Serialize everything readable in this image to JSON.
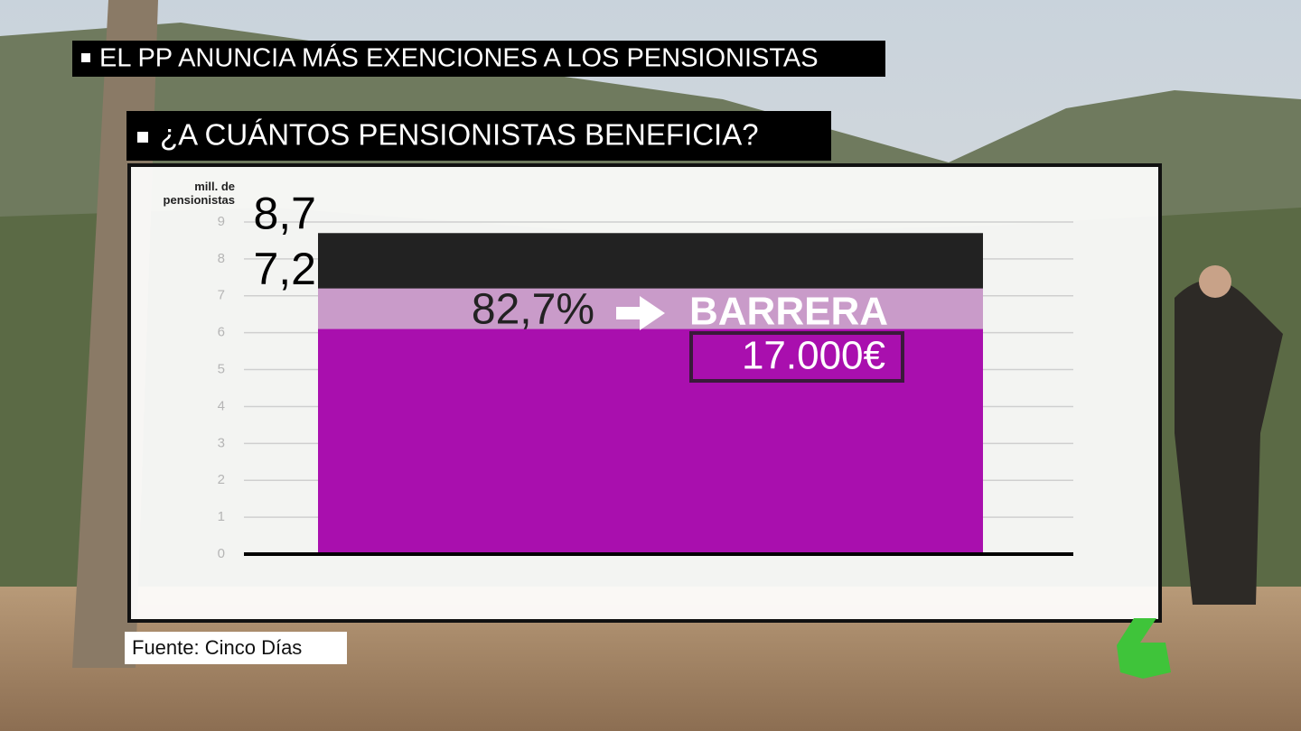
{
  "header": {
    "title": "EL PP ANUNCIA MÁS EXENCIONES A LOS PENSIONISTAS",
    "subtitle": "¿A CUÁNTOS PENSIONISTAS BENEFICIA?"
  },
  "source": "Fuente: Cinco Días",
  "chart_data": {
    "type": "bar",
    "ylabel": "mill. de pensionistas",
    "categories": [
      null
    ],
    "series": [
      {
        "color": "#222222",
        "values": [
          8.7
        ],
        "value_labels": [
          "8,7"
        ]
      },
      {
        "color": "#c99bc9",
        "values": [
          7.2
        ],
        "value_labels": [
          "7,2"
        ]
      },
      {
        "color": "#a90fae",
        "values": [
          6.1
        ]
      }
    ],
    "ylim": [
      0,
      9
    ],
    "yticks": [
      0,
      1,
      2,
      3,
      4,
      5,
      6,
      7,
      8,
      9
    ],
    "grid": true,
    "annotations": [
      {
        "value": 82.7,
        "label": "82,7%"
      },
      {
        "label": "BARRERA"
      },
      {
        "value": 17000,
        "label": "17.000€"
      }
    ]
  }
}
